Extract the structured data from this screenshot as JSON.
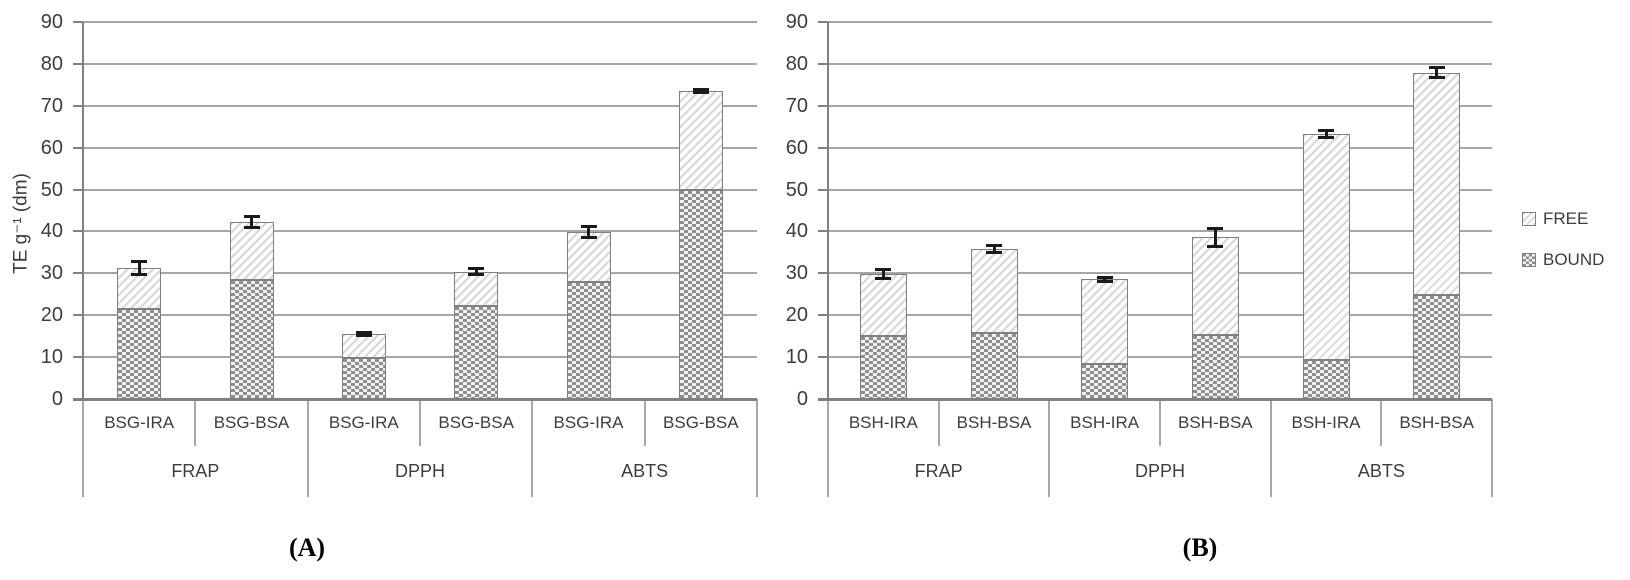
{
  "figure_title": "",
  "ylabel": "TE g⁻¹ (dm)",
  "legend": {
    "position": "right",
    "items": [
      {
        "label": "FREE",
        "pattern": "diagonal-hatch-light"
      },
      {
        "label": "BOUND",
        "pattern": "checker-dots-gray"
      }
    ]
  },
  "colors": {
    "grid": "#a6a6a6",
    "axis": "#808080",
    "bar_border": "#7f7f7f",
    "bound_fill": "#8f8f8f",
    "free_stripe": "#d8d8d8",
    "error_bar": "#1a1a1a",
    "text": "#3d3d3d"
  },
  "chart_data": [
    {
      "panel": "A",
      "caption": "(A)",
      "type": "bar",
      "stacked": true,
      "title": "",
      "xlabel": "",
      "ylabel": "TE g⁻¹ (dm)",
      "ylim": [
        0,
        90
      ],
      "ytick_step": 10,
      "grid": true,
      "groups": [
        "FRAP",
        "DPPH",
        "ABTS"
      ],
      "categories": [
        "BSG-IRA",
        "BSG-BSA",
        "BSG-IRA",
        "BSG-BSA",
        "BSG-IRA",
        "BSG-BSA"
      ],
      "series": [
        {
          "name": "BOUND",
          "values": [
            21.5,
            28.5,
            9.7,
            22.3,
            28.0,
            50.0
          ]
        },
        {
          "name": "FREE",
          "values": [
            9.7,
            13.8,
            5.8,
            8.1,
            11.8,
            23.5
          ]
        }
      ],
      "totals": [
        31.2,
        42.3,
        15.5,
        30.4,
        39.8,
        73.5
      ],
      "error_bars": [
        1.7,
        1.5,
        0.4,
        0.8,
        1.4,
        0.4
      ]
    },
    {
      "panel": "B",
      "caption": "(B)",
      "type": "bar",
      "stacked": true,
      "title": "",
      "xlabel": "",
      "ylabel": "",
      "ylim": [
        0,
        90
      ],
      "ytick_step": 10,
      "grid": true,
      "groups": [
        "FRAP",
        "DPPH",
        "ABTS"
      ],
      "categories": [
        "BSH-IRA",
        "BSH-BSA",
        "BSH-IRA",
        "BSH-BSA",
        "BSH-IRA",
        "BSH-BSA"
      ],
      "series": [
        {
          "name": "BOUND",
          "values": [
            15.0,
            15.7,
            8.4,
            15.3,
            9.3,
            24.8
          ]
        },
        {
          "name": "FREE",
          "values": [
            14.8,
            20.1,
            20.2,
            23.3,
            54.0,
            53.1
          ]
        }
      ],
      "totals": [
        29.8,
        35.8,
        28.6,
        38.6,
        63.3,
        77.9
      ],
      "error_bars": [
        1.2,
        1.0,
        0.6,
        2.2,
        0.9,
        1.3
      ]
    }
  ]
}
